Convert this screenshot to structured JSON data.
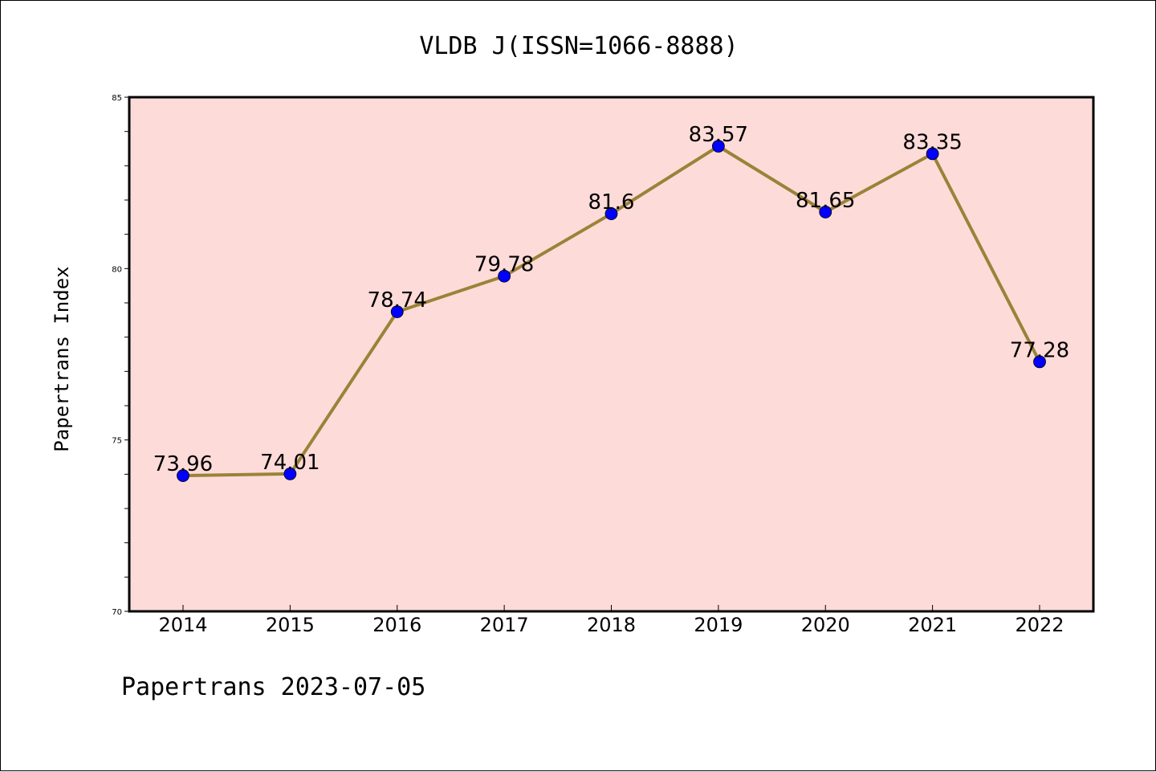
{
  "chart_data": {
    "type": "line",
    "title": "VLDB J(ISSN=1066-8888)",
    "ylabel": "Papertrans Index",
    "xlabel": "",
    "categories": [
      "2014",
      "2015",
      "2016",
      "2017",
      "2018",
      "2019",
      "2020",
      "2021",
      "2022"
    ],
    "values": [
      73.96,
      74.01,
      78.74,
      79.78,
      81.6,
      83.57,
      81.65,
      83.35,
      77.28
    ],
    "data_labels": [
      "73.96",
      "74.01",
      "78.74",
      "79.78",
      "81.6",
      "83.57",
      "81.65",
      "83.35",
      "77.28"
    ],
    "ylim": [
      70,
      85
    ],
    "yticks": [
      "70",
      "75",
      "80",
      "85"
    ],
    "grid": false,
    "colors": {
      "plot_background": "#fddbd9",
      "line": "#9b8238",
      "marker": "#0000ff"
    }
  },
  "footer": {
    "text": "Papertrans 2023-07-05"
  }
}
